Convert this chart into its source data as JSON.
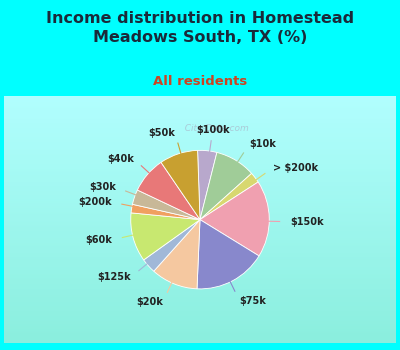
{
  "title": "Income distribution in Homestead\nMeadows South, TX (%)",
  "subtitle": "All residents",
  "bg_cyan": "#00FFFF",
  "bg_chart_color": "#e8f5ee",
  "title_color": "#1a2a3a",
  "subtitle_color": "#cc4422",
  "labels": [
    "$100k",
    "$10k",
    "> $200k",
    "$150k",
    "$75k",
    "$20k",
    "$125k",
    "$60k",
    "$200k",
    "$30k",
    "$40k",
    "$50k"
  ],
  "values": [
    4.5,
    9.5,
    2.5,
    18.0,
    17.0,
    11.0,
    3.5,
    11.5,
    2.0,
    3.5,
    8.5,
    9.0
  ],
  "colors": [
    "#b8a8cc",
    "#a0cc98",
    "#d8d870",
    "#f0a0b0",
    "#8888cc",
    "#f5c8a0",
    "#a0b8d8",
    "#c8e870",
    "#f0a060",
    "#c8b898",
    "#e87878",
    "#c8a030"
  ],
  "label_fontsize": 7.0,
  "title_fontsize": 11.5,
  "subtitle_fontsize": 9.5,
  "startangle": 92,
  "watermark": "  City-Data.com"
}
